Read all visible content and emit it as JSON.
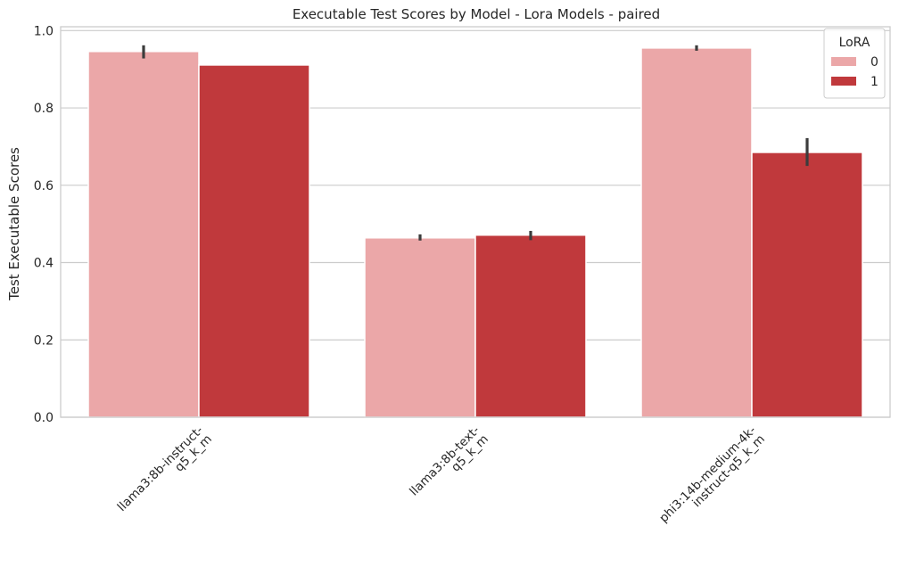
{
  "chart_data": {
    "type": "bar",
    "title": "Executable Test Scores by Model - Lora Models - paired",
    "xlabel": "",
    "ylabel": "Test Executable Scores",
    "ylim": [
      0,
      1.01
    ],
    "yticks": [
      0.0,
      0.2,
      0.4,
      0.6,
      0.8,
      1.0
    ],
    "ytick_labels": [
      "0.0",
      "0.2",
      "0.4",
      "0.6",
      "0.8",
      "1.0"
    ],
    "grid": "horizontal",
    "categories": [
      [
        "llama3:8b-instruct-",
        "q5_k_m"
      ],
      [
        "llama3:8b-text-",
        "q5_k_m"
      ],
      [
        "phi3:14b-medium-4k-",
        "instruct-q5_k_m"
      ]
    ],
    "legend": {
      "title": "LoRA",
      "position": "top-right"
    },
    "series": [
      {
        "name": "0",
        "color": "#eba7a8",
        "values": [
          0.946,
          0.464,
          0.955
        ],
        "error": [
          [
            0.928,
            0.962
          ],
          [
            0.457,
            0.473
          ],
          [
            0.948,
            0.962
          ]
        ]
      },
      {
        "name": "1",
        "color": "#c0393c",
        "values": [
          0.911,
          0.471,
          0.685
        ],
        "error": [
          null,
          [
            0.458,
            0.482
          ],
          [
            0.65,
            0.722
          ]
        ]
      }
    ]
  }
}
